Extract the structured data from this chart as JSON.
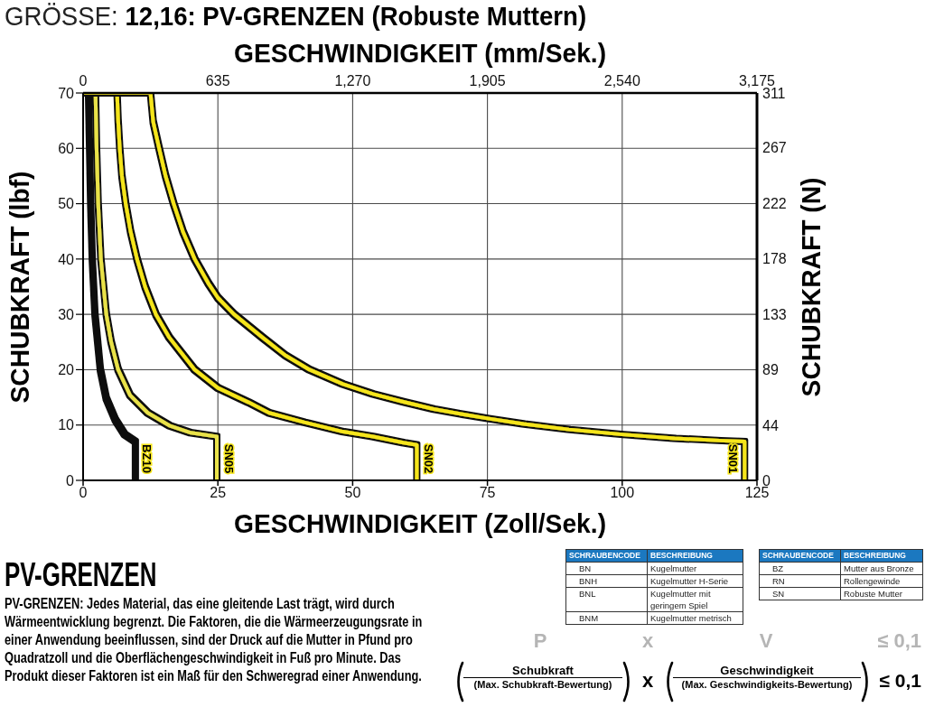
{
  "chart_data": {
    "type": "line",
    "title": "GRÖSSE: 12,16: PV-GRENZEN (Robuste Muttern)",
    "xlabel": "GESCHWINDIGKEIT (Zoll/Sek.)",
    "x2label": "GESCHWINDIGKEIT (mm/Sek.)",
    "ylabel": "SCHUBKRAFT (lbf)",
    "y2label": "SCHUBKRAFT (N)",
    "xlim": [
      0,
      125
    ],
    "xticks": [
      0,
      25,
      50,
      75,
      100,
      125
    ],
    "x2lim": [
      0,
      3175
    ],
    "x2ticks": [
      0,
      635,
      {
        "value": 1270,
        "label": "1,270"
      },
      {
        "value": 1905,
        "label": "1,905"
      },
      {
        "value": 2540,
        "label": "2,540"
      },
      {
        "value": 3175,
        "label": "3,175"
      }
    ],
    "ylim": [
      0,
      70
    ],
    "yticks": [
      0,
      10,
      20,
      30,
      40,
      50,
      60,
      70
    ],
    "y2lim": [
      0,
      311
    ],
    "y2ticks": [
      0,
      44,
      89,
      133,
      178,
      222,
      267,
      311
    ],
    "grid": true,
    "series": [
      {
        "name": "BZ10",
        "color": "#111111",
        "x": [
          0,
          1.0,
          1.2,
          1.4,
          1.7,
          2.2,
          3.2,
          4.3,
          6.0,
          7.7,
          9.7,
          9.7
        ],
        "values": [
          70,
          70,
          60,
          50,
          40,
          30,
          20,
          14.8,
          10.9,
          8.3,
          7.0,
          0
        ]
      },
      {
        "name": "SN05",
        "color": "#e9e24a",
        "x": [
          0,
          2.3,
          2.4,
          2.5,
          2.8,
          3.3,
          4.3,
          5.2,
          6.5,
          8.7,
          12.0,
          16.0,
          20.0,
          24.8,
          24.8
        ],
        "values": [
          70,
          70,
          65,
          60,
          50,
          40,
          30,
          25,
          20,
          15.4,
          12.2,
          9.9,
          8.6,
          7.9,
          0
        ]
      },
      {
        "name": "SN02",
        "color": "#f5e51a",
        "x": [
          0,
          6.3,
          6.5,
          6.8,
          7.2,
          7.9,
          8.8,
          10.0,
          11.5,
          13.5,
          16.0,
          20.7,
          25,
          30.7,
          34.5,
          41,
          48.2,
          53.8,
          59.4,
          61.9,
          61.9
        ],
        "values": [
          70,
          70,
          65,
          60,
          55,
          50,
          45,
          40,
          35,
          30,
          25.8,
          20,
          16.7,
          14.1,
          12.2,
          10.5,
          8.8,
          7.9,
          6.8,
          6.4,
          0
        ]
      },
      {
        "name": "SN01",
        "color": "#f5e51a",
        "x": [
          0,
          12.5,
          13.0,
          14.1,
          15.3,
          16.8,
          18.5,
          20.7,
          23.3,
          25,
          28,
          33.3,
          37.5,
          42,
          48.2,
          53.8,
          59.4,
          65,
          70.6,
          75,
          81.7,
          90.1,
          100,
          109.7,
          118,
          122.7,
          122.7
        ],
        "values": [
          70,
          70,
          64.8,
          60,
          55,
          50,
          45,
          40,
          35.5,
          33,
          30,
          25.8,
          22.6,
          20,
          17.4,
          15.6,
          14.2,
          12.9,
          11.9,
          11.2,
          10.2,
          9.2,
          8.3,
          7.6,
          7.2,
          7.0,
          0
        ]
      }
    ],
    "annotations": [
      "PV-GRENZEN",
      "PV-GRENZEN: Jedes Material, das eine gleitende Last trägt, wird durch Wärmeentwicklung begrenzt. Die Faktoren, die die Wärmeerzeugungsrate in einer Anwendung beeinflussen, sind der Druck auf die Mutter in Pfund pro Quadratzoll und die Oberflächengeschwindigkeit in Fuß pro Minute. Das Produkt dieser Faktoren ist ein Maß für den Schweregrad einer Anwendung.",
      "SCHRAUBENCODE",
      "BESCHREIBUNG",
      "BN",
      "Kugelmutter",
      "BNH",
      "Kugelmutter H-Serie",
      "BNL",
      "Kugelmutter mit geringem Spiel",
      "BNM",
      "Kugelmutter metrisch",
      "SCHRAUBENCODE",
      "BESCHREIBUNG",
      "BZ",
      "Mutter aus Bronze",
      "RN",
      "Rollengewinde",
      "SN",
      "Robuste Mutter",
      "P",
      "x",
      "V",
      "≤ 0,1",
      "Schubkraft",
      "(Max. Schubkraft-Bewertung)",
      "x",
      "Geschwindigkeit",
      "(Max. Geschwindigkeits-Bewertung)",
      "≤ 0,1"
    ]
  }
}
